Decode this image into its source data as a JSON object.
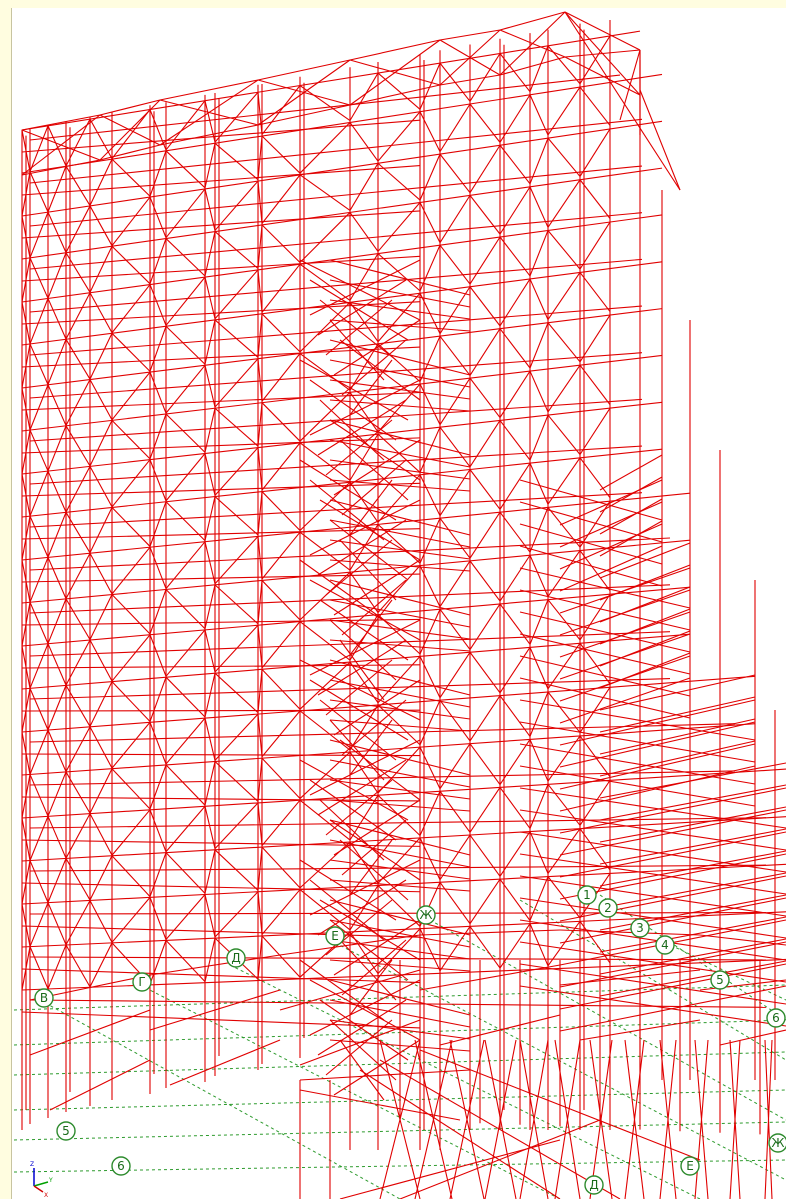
{
  "colors": {
    "frame": "#e00000",
    "grid": "#2e9b2e",
    "label": "#1a6b1a",
    "background": "#ffffff",
    "panel": "#fffde0"
  },
  "axis_markers": [
    {
      "label": "В"
    },
    {
      "label": "Г"
    },
    {
      "label": "Д"
    },
    {
      "label": "Е"
    },
    {
      "label": "Ж"
    },
    {
      "label": "1"
    },
    {
      "label": "2"
    },
    {
      "label": "3"
    },
    {
      "label": "4"
    },
    {
      "label": "5"
    },
    {
      "label": "6"
    },
    {
      "label": "5"
    },
    {
      "label": "6"
    },
    {
      "label": "Д"
    },
    {
      "label": "Е"
    },
    {
      "label": "Ж"
    }
  ],
  "triad": {
    "z": "Z",
    "y": "Y",
    "x": "X",
    "x_color": "#d00000",
    "y_color": "#00a000",
    "z_color": "#0000d0"
  }
}
